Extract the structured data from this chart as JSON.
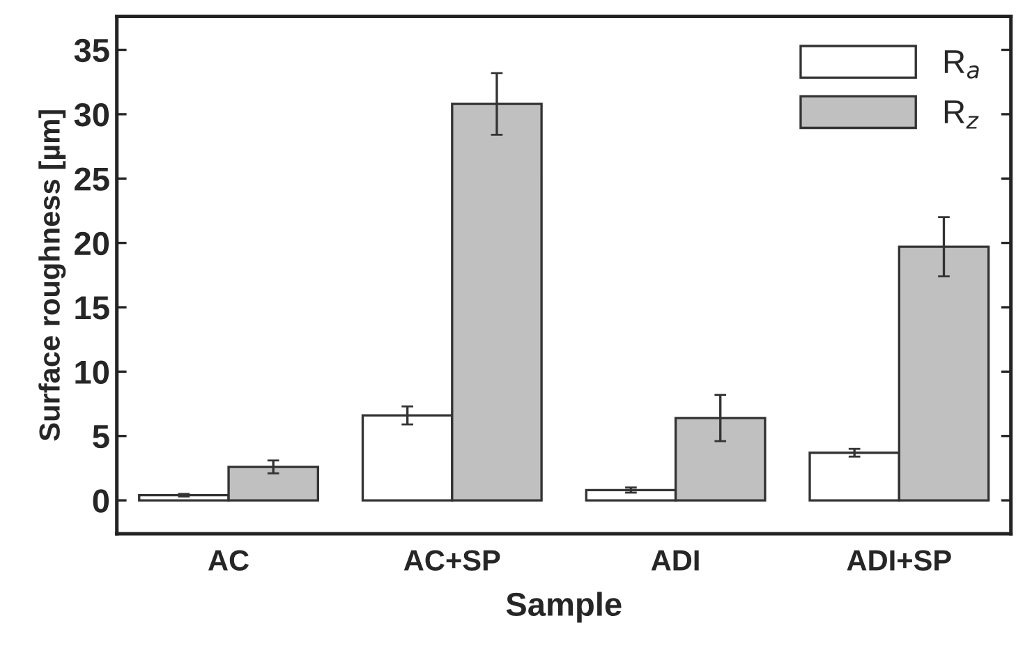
{
  "chart_data": {
    "type": "bar",
    "xlabel": "Sample",
    "ylabel": "Surface roughness [µm]",
    "categories": [
      "AC",
      "AC+SP",
      "ADI",
      "ADI+SP"
    ],
    "series": [
      {
        "name": "R$_{a}$",
        "color": "#ffffff",
        "values": [
          0.4,
          6.6,
          0.8,
          3.7
        ],
        "errors": [
          0.1,
          0.7,
          0.2,
          0.3
        ]
      },
      {
        "name": "R$_{z}$",
        "color": "#c0c0c0",
        "values": [
          2.6,
          30.8,
          6.4,
          19.7
        ],
        "errors": [
          0.5,
          2.4,
          1.8,
          2.3
        ]
      }
    ],
    "ylim": [
      -2.6,
      37.6
    ],
    "yticks": [
      0,
      5,
      10,
      15,
      20,
      25,
      30,
      35
    ],
    "grid": false,
    "legend": "top right"
  }
}
